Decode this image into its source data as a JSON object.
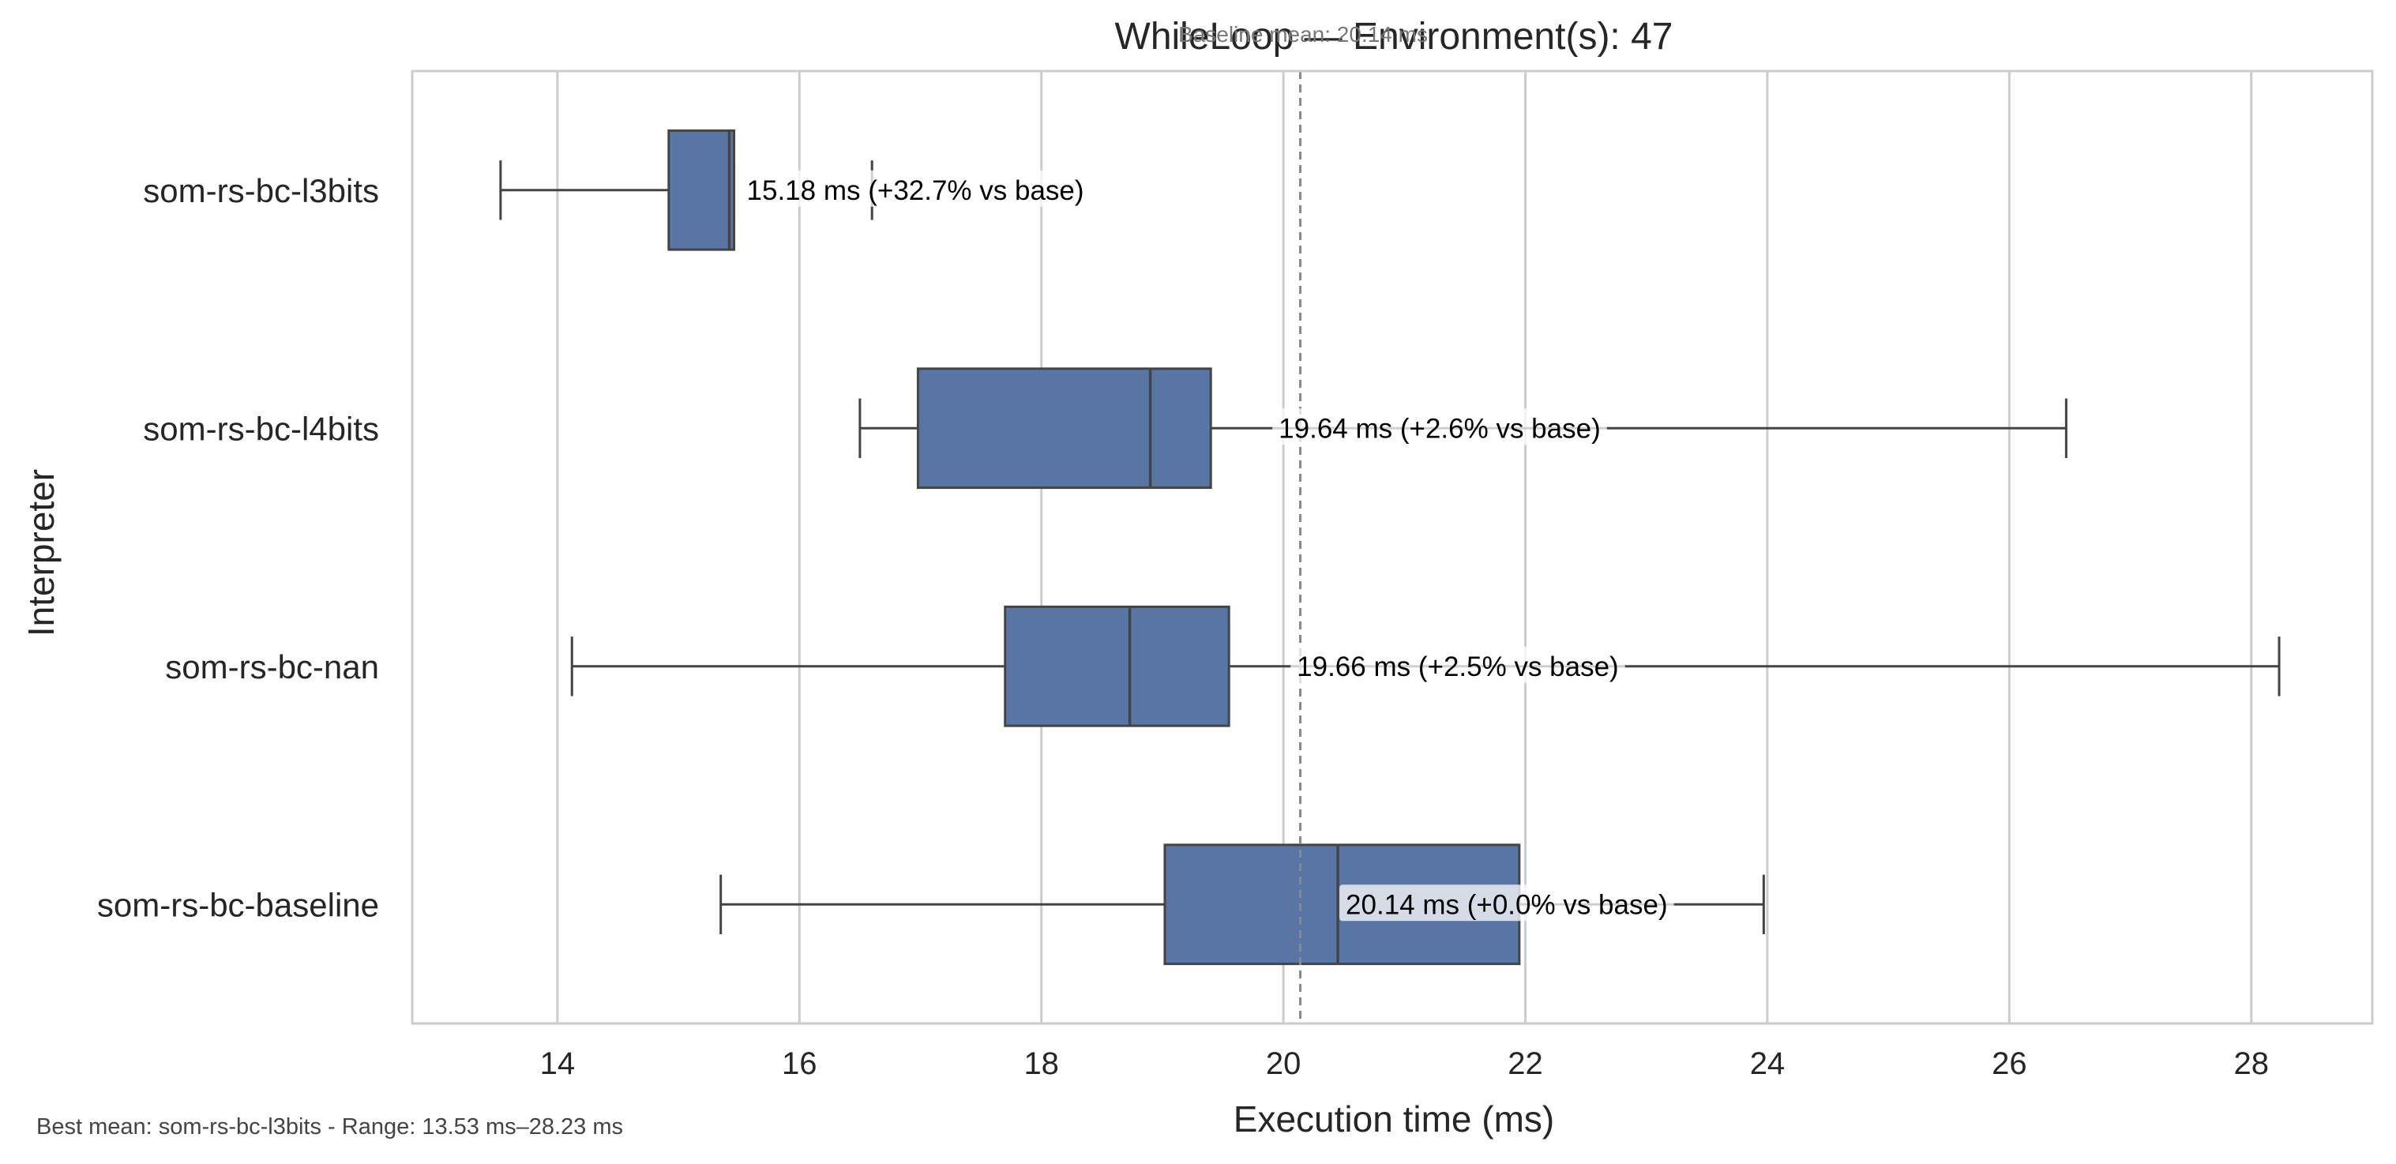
{
  "chart_data": {
    "type": "boxplot",
    "orientation": "horizontal",
    "title": "WhileLoop — Environment(s): 47",
    "baseline_note": "Baseline mean: 20.14 ms",
    "xlabel": "Execution time (ms)",
    "ylabel": "Interpreter",
    "xlim": [
      12.8,
      29.0
    ],
    "xticks": [
      14,
      16,
      18,
      20,
      22,
      24,
      26,
      28
    ],
    "grid": "vertical",
    "baseline_mean": 20.14,
    "box_color": "#5975a4",
    "series": [
      {
        "name": "som-rs-bc-l3bits",
        "whisker_low": 13.53,
        "q1": 14.92,
        "median": 15.42,
        "q3": 15.46,
        "whisker_high": 15.46,
        "outliers": [
          16.6
        ],
        "label": "15.18 ms  (+32.7% vs base)"
      },
      {
        "name": "som-rs-bc-l4bits",
        "whisker_low": 16.5,
        "q1": 16.98,
        "median": 18.9,
        "q3": 19.4,
        "whisker_high": 26.47,
        "outliers": [],
        "label": "19.64 ms  (+2.6% vs base)"
      },
      {
        "name": "som-rs-bc-nan",
        "whisker_low": 14.12,
        "q1": 17.7,
        "median": 18.73,
        "q3": 19.55,
        "whisker_high": 28.23,
        "outliers": [],
        "label": "19.66 ms  (+2.5% vs base)"
      },
      {
        "name": "som-rs-bc-baseline",
        "whisker_low": 15.35,
        "q1": 19.02,
        "median": 20.45,
        "q3": 21.95,
        "whisker_high": 23.97,
        "outliers": [],
        "label": "20.14 ms  (+0.0% vs base)"
      }
    ],
    "footnote": "Best mean: som-rs-bc-l3bits - Range: 13.53 ms–28.23 ms"
  }
}
